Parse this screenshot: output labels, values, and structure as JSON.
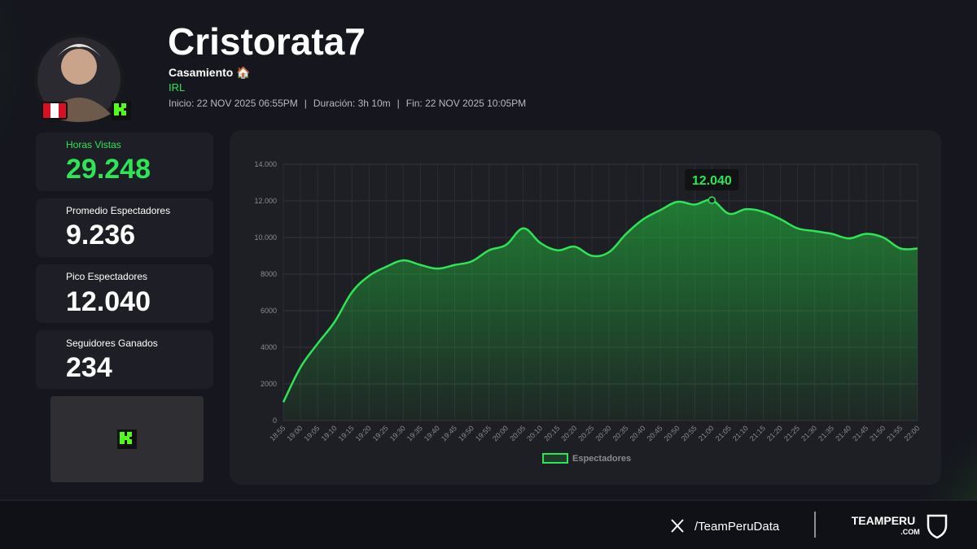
{
  "header": {
    "name": "Cristorata7",
    "stream_title": "Casamiento 🏠",
    "category": "IRL",
    "start": "Inicio: 22 NOV 2025 06:55PM",
    "duration": "Duración: 3h 10m",
    "end": "Fin: 22 NOV 2025 10:05PM",
    "separator": "|"
  },
  "stats": [
    {
      "label": "Horas Vistas",
      "value": "29.248"
    },
    {
      "label": "Promedio Espectadores",
      "value": "9.236"
    },
    {
      "label": "Pico Espectadores",
      "value": "12.040"
    },
    {
      "label": "Seguidores Ganados",
      "value": "234"
    }
  ],
  "footer": {
    "handle": "/TeamPeruData",
    "brand": "TEAMPERU",
    "brand_suffix": ".COM"
  },
  "chart_data": {
    "type": "line",
    "categories": [
      "18:55",
      "19:00",
      "19:05",
      "19:10",
      "19:15",
      "19:20",
      "19:25",
      "19:30",
      "19:35",
      "19:40",
      "19:45",
      "19:50",
      "19:55",
      "20:00",
      "20:05",
      "20:10",
      "20:15",
      "20:20",
      "20:25",
      "20:30",
      "20:35",
      "20:40",
      "20:45",
      "20:50",
      "20:55",
      "21:00",
      "21:05",
      "21:10",
      "21:15",
      "21:20",
      "21:25",
      "21:30",
      "21:35",
      "21:40",
      "21:45",
      "21:50",
      "21:55",
      "22:00"
    ],
    "series": [
      {
        "name": "Espectadores",
        "color": "#2ee556",
        "values": [
          1000,
          2900,
          4200,
          5400,
          7000,
          7900,
          8400,
          8750,
          8500,
          8300,
          8500,
          8700,
          9300,
          9600,
          10500,
          9700,
          9300,
          9500,
          9000,
          9200,
          10200,
          11000,
          11500,
          11950,
          11800,
          12040,
          11300,
          11550,
          11400,
          11000,
          10500,
          10350,
          10200,
          9950,
          10200,
          10000,
          9400,
          9400
        ]
      }
    ],
    "ylim": [
      0,
      14000
    ],
    "yticks": [
      0,
      2000,
      4000,
      6000,
      8000,
      {
        "value": 10000,
        "label": "10.000"
      },
      {
        "value": 12000,
        "label": "12.000"
      },
      {
        "value": 14000,
        "label": "14.000"
      }
    ],
    "grid": true,
    "legend": "bottom",
    "annotations": [
      {
        "x": "21:00",
        "y": 12040,
        "text": "12.040"
      }
    ]
  }
}
